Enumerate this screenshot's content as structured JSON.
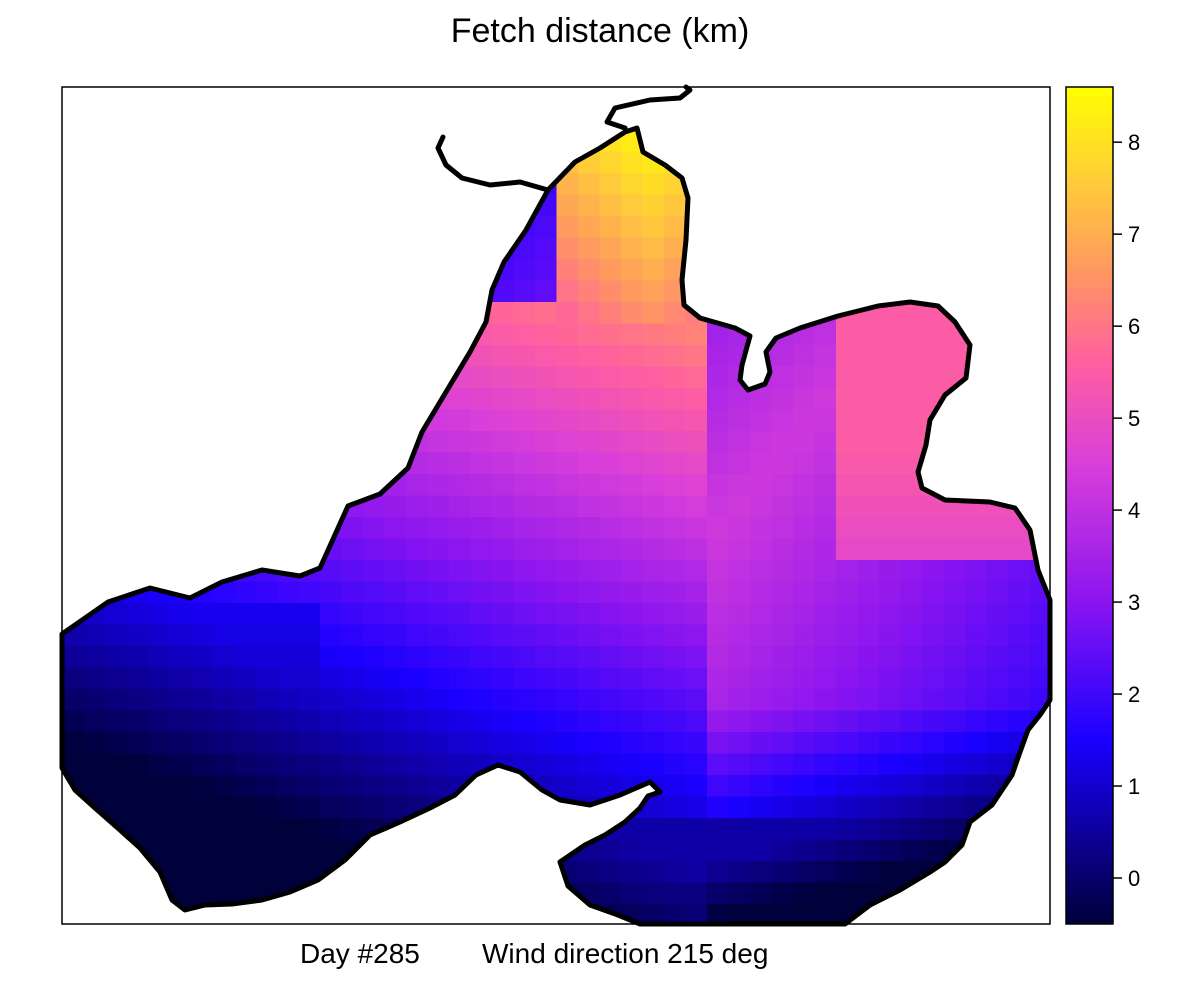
{
  "title": "Fetch distance (km)",
  "subtitle": {
    "day": "Day #285",
    "wind": "Wind direction 215 deg"
  },
  "chart_data": {
    "type": "heatmap",
    "title": "Fetch distance (km)",
    "xlabel": "",
    "ylabel": "",
    "color_scale": {
      "range": [
        -0.5,
        8.6
      ],
      "ticks": [
        0,
        1,
        2,
        3,
        4,
        5,
        6,
        7,
        8
      ],
      "stops": [
        {
          "value": -0.5,
          "color": "#00003a"
        },
        {
          "value": 1.5,
          "color": "#1a00ff"
        },
        {
          "value": 3.0,
          "color": "#8a14f0"
        },
        {
          "value": 4.5,
          "color": "#d93fd9"
        },
        {
          "value": 5.6,
          "color": "#ff5fa0"
        },
        {
          "value": 6.6,
          "color": "#ff9860"
        },
        {
          "value": 7.6,
          "color": "#ffce38"
        },
        {
          "value": 8.6,
          "color": "#ffff00"
        }
      ]
    },
    "grid": false,
    "shoreline_color": "#000000",
    "notes": "Fetch distance raster over a lake for wind from 215 deg; values highest (~8 km) in the northern arm, lowest (~0 km) along the south-west shores."
  }
}
